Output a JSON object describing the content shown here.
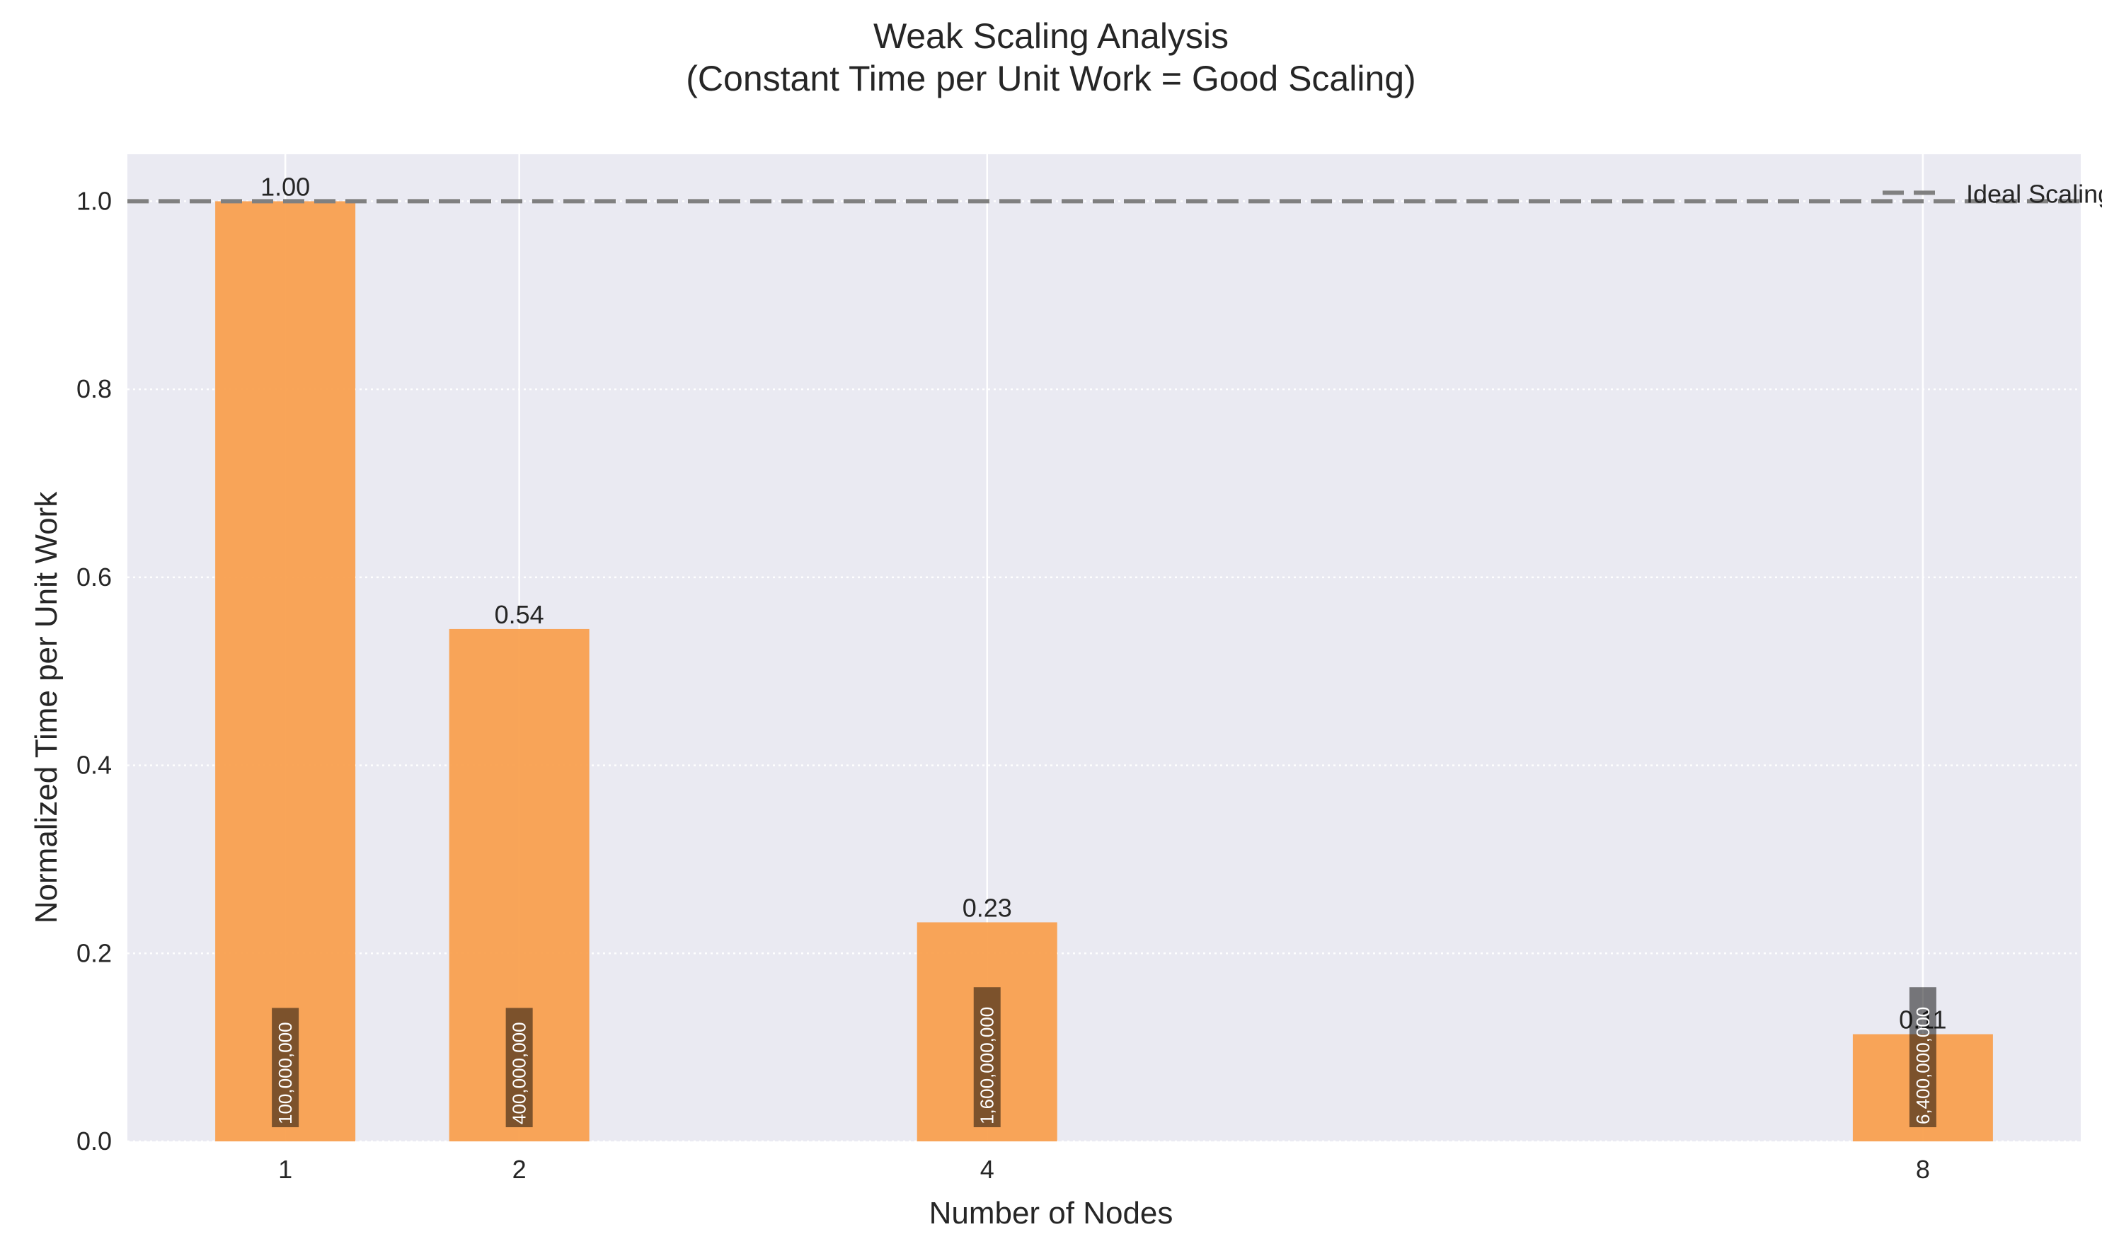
{
  "chart_data": {
    "type": "bar",
    "title_lines": [
      "Weak Scaling Analysis",
      "(Constant Time per Unit Work = Good Scaling)"
    ],
    "xlabel": "Number of Nodes",
    "ylabel": "Normalized Time per Unit Work",
    "x": [
      1,
      2,
      4,
      8
    ],
    "x_tick_labels": [
      "1",
      "2",
      "4",
      "8"
    ],
    "values": [
      1.0,
      0.545,
      0.233,
      0.114
    ],
    "value_labels": [
      "1.00",
      "0.54",
      "0.23",
      "0.11"
    ],
    "work_labels": [
      "100,000,000",
      "400,000,000",
      "1,600,000,000",
      "6,400,000,000"
    ],
    "ylim": [
      0,
      1.05
    ],
    "xlim": [
      0.325,
      8.675
    ],
    "yticks": [
      0.0,
      0.2,
      0.4,
      0.6,
      0.8,
      1.0
    ],
    "ytick_labels": [
      "0.0",
      "0.2",
      "0.4",
      "0.6",
      "0.8",
      "1.0"
    ],
    "reference_line": {
      "y": 1.0,
      "label": "Ideal Scaling",
      "style": "dashed",
      "color": "#808080"
    },
    "legend": {
      "position": "upper-right",
      "entries": [
        "Ideal Scaling"
      ]
    },
    "bar_color": "#f9a04f",
    "plot_background": "#eaeaf2",
    "grid": true
  }
}
